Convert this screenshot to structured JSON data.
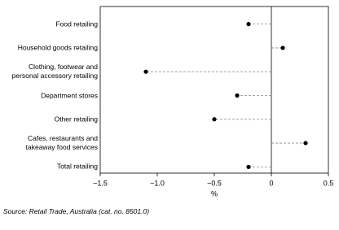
{
  "chart_data": {
    "type": "dot",
    "categories": [
      "Food retailing",
      "Household goods retailing",
      "Clothing, footwear and personal accessory retailing",
      "Department stores",
      "Other retailing",
      "Cafes, restaurants and takeaway food services",
      "Total retailing"
    ],
    "values": [
      -0.2,
      0.1,
      -1.1,
      -0.3,
      -0.5,
      0.3,
      -0.2
    ],
    "color": "#000000",
    "xlabel": "%",
    "xlim": [
      -1.5,
      0.5
    ],
    "xticks": [
      {
        "value": -1.5,
        "label": "−1.5"
      },
      {
        "value": -1.0,
        "label": "−1.0"
      },
      {
        "value": -0.5,
        "label": "−0.5"
      },
      0,
      0.5
    ],
    "source": "Source: Retail Trade, Australia (cat. no. 8501.0)"
  }
}
